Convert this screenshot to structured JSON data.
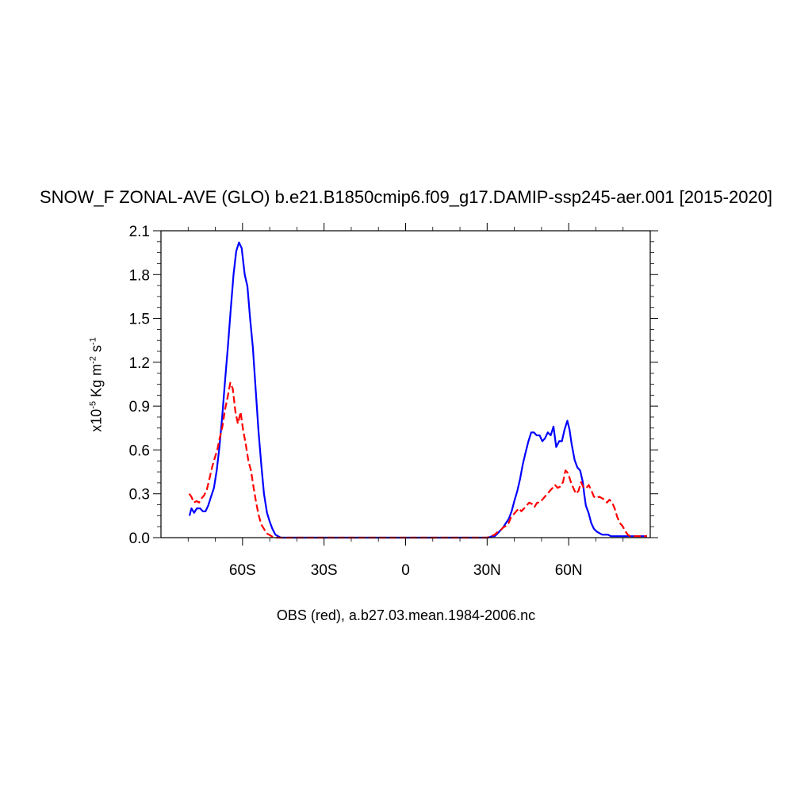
{
  "chart_data": {
    "type": "line",
    "title": "SNOW_F ZONAL-AVE (GLO) b.e21.B1850cmip6.f09_g17.DAMIP-ssp245-aer.001 [2015-2020]",
    "xlabel": "OBS (red), a.b27.03.mean.1984-2006.nc",
    "ylabel": {
      "prefix": "x10",
      "exp": "-5",
      "units1": " Kg m",
      "exp2": "-2",
      "units2": " s",
      "exp3": "-1"
    },
    "xlim": [
      -90,
      90
    ],
    "ylim": [
      0,
      2.1
    ],
    "x_ticks": [
      {
        "value": -60,
        "label": "60S"
      },
      {
        "value": -30,
        "label": "30S"
      },
      {
        "value": 0,
        "label": "0"
      },
      {
        "value": 30,
        "label": "30N"
      },
      {
        "value": 60,
        "label": "60N"
      }
    ],
    "y_ticks": [
      {
        "value": 0.0,
        "label": "0.0"
      },
      {
        "value": 0.3,
        "label": "0.3"
      },
      {
        "value": 0.6,
        "label": "0.6"
      },
      {
        "value": 0.9,
        "label": "0.9"
      },
      {
        "value": 1.2,
        "label": "1.2"
      },
      {
        "value": 1.5,
        "label": "1.5"
      },
      {
        "value": 1.8,
        "label": "1.8"
      },
      {
        "value": 2.1,
        "label": "2.1"
      }
    ],
    "series": [
      {
        "color": "#0000ff",
        "dash": "solid",
        "x": [
          -79.5,
          -78.8,
          -77.8,
          -76.8,
          -75.6,
          -74.6,
          -73.6,
          -72.6,
          -71.6,
          -70.5,
          -69.5,
          -68.5,
          -67.5,
          -66.4,
          -65.4,
          -64.4,
          -63.3,
          -62.3,
          -61.3,
          -60.3,
          -59.2,
          -58.2,
          -57.2,
          -56.2,
          -55.1,
          -54.1,
          -53.1,
          -52.1,
          -51.0,
          -50.0,
          -49.0,
          -47.9,
          -46.9,
          -45.9,
          -44.9,
          -43.8,
          -42.5,
          -40,
          -35,
          -30,
          -20,
          -10,
          0,
          10,
          20,
          25,
          28,
          30.5,
          31.8,
          32.8,
          33.9,
          34.9,
          35.9,
          36.9,
          38.0,
          39.0,
          40.0,
          41.1,
          42.1,
          43.1,
          44.1,
          45.2,
          46.2,
          47.2,
          48.2,
          49.3,
          50.3,
          51.3,
          52.3,
          53.4,
          54.4,
          55.4,
          56.5,
          57.5,
          58.5,
          59.5,
          60.3,
          61.1,
          62.2,
          63.2,
          64.2,
          65.2,
          65.7,
          66.3,
          67.3,
          68.3,
          69.3,
          70.4,
          71.4,
          72.4,
          73.4,
          74.5,
          75.5,
          76.5,
          77.6,
          78.6,
          79.6,
          80.6,
          81.7,
          82.7,
          85.1,
          87.5,
          88.8
        ],
        "y": [
          0.15,
          0.2,
          0.17,
          0.2,
          0.2,
          0.18,
          0.18,
          0.22,
          0.28,
          0.34,
          0.46,
          0.62,
          0.82,
          1.08,
          1.3,
          1.55,
          1.8,
          1.96,
          2.02,
          1.98,
          1.8,
          1.72,
          1.5,
          1.3,
          1.0,
          0.72,
          0.5,
          0.3,
          0.17,
          0.11,
          0.06,
          0.02,
          0.01,
          0.0,
          0.0,
          0.0,
          0.0,
          0.0,
          0.0,
          0.0,
          0.0,
          0.0,
          0.0,
          0.0,
          0.0,
          0.0,
          0.0,
          0.0,
          0.01,
          0.01,
          0.03,
          0.05,
          0.07,
          0.1,
          0.13,
          0.18,
          0.25,
          0.32,
          0.4,
          0.5,
          0.58,
          0.66,
          0.72,
          0.72,
          0.7,
          0.7,
          0.66,
          0.68,
          0.72,
          0.7,
          0.76,
          0.62,
          0.66,
          0.66,
          0.74,
          0.8,
          0.74,
          0.64,
          0.53,
          0.48,
          0.46,
          0.38,
          0.3,
          0.22,
          0.17,
          0.1,
          0.06,
          0.04,
          0.03,
          0.02,
          0.02,
          0.02,
          0.01,
          0.01,
          0.01,
          0.01,
          0.01,
          0.01,
          0.01,
          0.01,
          0.01,
          0.01,
          0.01
        ]
      },
      {
        "color": "#ff0000",
        "dash": "dashed",
        "x": [
          -79.6,
          -78.8,
          -77.9,
          -76.9,
          -76.0,
          -75.0,
          -74.1,
          -73.1,
          -72.2,
          -71.2,
          -70.3,
          -69.3,
          -68.4,
          -67.4,
          -66.4,
          -65.5,
          -64.5,
          -63.6,
          -62.6,
          -61.7,
          -60.7,
          -59.8,
          -58.8,
          -57.8,
          -56.9,
          -55.9,
          -55.0,
          -54.0,
          -53.1,
          -52.1,
          -51.2,
          -50.2,
          -49.3,
          -48.3,
          -47.4,
          -46.4,
          -44.5,
          -40,
          -30,
          -20,
          -10,
          0,
          10,
          20,
          30,
          31.5,
          32.8,
          33.9,
          34.9,
          35.9,
          36.9,
          37.9,
          38.8,
          39.8,
          40.7,
          41.7,
          42.6,
          43.6,
          44.5,
          45.5,
          46.5,
          47.4,
          48.4,
          49.3,
          50.3,
          51.2,
          52.2,
          53.1,
          54.1,
          55.0,
          56.0,
          56.9,
          57.9,
          58.8,
          59.8,
          60.8,
          61.7,
          62.7,
          63.6,
          64.6,
          65.5,
          66.5,
          67.4,
          68.4,
          69.3,
          70.3,
          71.2,
          72.2,
          73.1,
          74.1,
          75.0,
          76.0,
          76.9,
          77.9,
          78.8,
          79.8,
          80.7,
          81.7,
          82.6,
          83.6,
          84.5,
          85.5,
          86.4,
          87.4,
          88.8
        ],
        "y": [
          0.3,
          0.28,
          0.24,
          0.25,
          0.24,
          0.27,
          0.29,
          0.33,
          0.4,
          0.48,
          0.54,
          0.6,
          0.68,
          0.76,
          0.88,
          0.96,
          1.06,
          1.02,
          0.86,
          0.78,
          0.86,
          0.74,
          0.64,
          0.52,
          0.46,
          0.34,
          0.24,
          0.15,
          0.09,
          0.06,
          0.03,
          0.02,
          0.01,
          0.0,
          0.0,
          0.0,
          0.0,
          0.0,
          0.0,
          0.0,
          0.0,
          0.0,
          0.0,
          0.0,
          0.0,
          0.01,
          0.02,
          0.04,
          0.05,
          0.07,
          0.08,
          0.1,
          0.14,
          0.16,
          0.18,
          0.2,
          0.18,
          0.2,
          0.22,
          0.24,
          0.23,
          0.21,
          0.24,
          0.24,
          0.26,
          0.28,
          0.3,
          0.32,
          0.34,
          0.36,
          0.34,
          0.35,
          0.38,
          0.46,
          0.44,
          0.38,
          0.34,
          0.3,
          0.32,
          0.38,
          0.34,
          0.34,
          0.36,
          0.32,
          0.28,
          0.27,
          0.28,
          0.27,
          0.26,
          0.24,
          0.26,
          0.24,
          0.2,
          0.14,
          0.1,
          0.08,
          0.05,
          0.02,
          0.01,
          0.01,
          0.01,
          0.01,
          0.01,
          0.01,
          0.01
        ]
      }
    ]
  }
}
